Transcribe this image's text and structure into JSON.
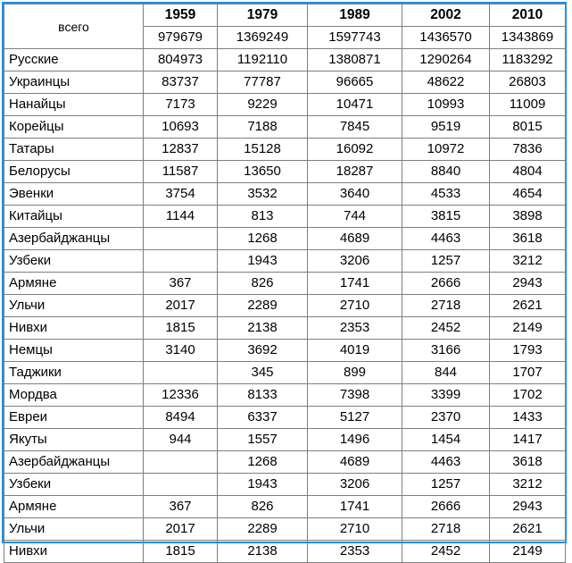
{
  "table": {
    "corner_label": "всего",
    "years": [
      "1959",
      "1979",
      "1989",
      "2002",
      "2010"
    ],
    "totals": [
      "979679",
      "1369249",
      "1597743",
      "1436570",
      "1343869"
    ],
    "rows": [
      {
        "name": "Русские",
        "values": [
          "804973",
          "1192110",
          "1380871",
          "1290264",
          "1183292"
        ]
      },
      {
        "name": "Украинцы",
        "values": [
          "83737",
          "77787",
          "96665",
          "48622",
          "26803"
        ]
      },
      {
        "name": "Нанайцы",
        "values": [
          "7173",
          "9229",
          "10471",
          "10993",
          "11009"
        ]
      },
      {
        "name": "Корейцы",
        "values": [
          "10693",
          "7188",
          "7845",
          "9519",
          "8015"
        ]
      },
      {
        "name": "Татары",
        "values": [
          "12837",
          "15128",
          "16092",
          "10972",
          "7836"
        ]
      },
      {
        "name": "Белорусы",
        "values": [
          "11587",
          "13650",
          "18287",
          "8840",
          "4804"
        ]
      },
      {
        "name": "Эвенки",
        "values": [
          "3754",
          "3532",
          "3640",
          "4533",
          "4654"
        ]
      },
      {
        "name": "Китайцы",
        "values": [
          "1144",
          "813",
          "744",
          "3815",
          "3898"
        ]
      },
      {
        "name": "Азербайджанцы",
        "values": [
          "",
          "1268",
          "4689",
          "4463",
          "3618"
        ]
      },
      {
        "name": "Узбеки",
        "values": [
          "",
          "1943",
          "3206",
          "1257",
          "3212"
        ]
      },
      {
        "name": "Армяне",
        "values": [
          "367",
          "826",
          "1741",
          "2666",
          "2943"
        ]
      },
      {
        "name": "Ульчи",
        "values": [
          "2017",
          "2289",
          "2710",
          "2718",
          "2621"
        ]
      },
      {
        "name": "Нивхи",
        "values": [
          "1815",
          "2138",
          "2353",
          "2452",
          "2149"
        ]
      },
      {
        "name": "Немцы",
        "values": [
          "3140",
          "3692",
          "4019",
          "3166",
          "1793"
        ]
      },
      {
        "name": "Таджики",
        "values": [
          "",
          "345",
          "899",
          "844",
          "1707"
        ]
      },
      {
        "name": "Мордва",
        "values": [
          "12336",
          "8133",
          "7398",
          "3399",
          "1702"
        ]
      },
      {
        "name": "Евреи",
        "values": [
          "8494",
          "6337",
          "5127",
          "2370",
          "1433"
        ]
      },
      {
        "name": "Якуты",
        "values": [
          "944",
          "1557",
          "1496",
          "1454",
          "1417"
        ]
      },
      {
        "name": "Азербайджанцы",
        "values": [
          "",
          "1268",
          "4689",
          "4463",
          "3618"
        ]
      },
      {
        "name": "Узбеки",
        "values": [
          "",
          "1943",
          "3206",
          "1257",
          "3212"
        ]
      },
      {
        "name": "Армяне",
        "values": [
          "367",
          "826",
          "1741",
          "2666",
          "2943"
        ]
      },
      {
        "name": "Ульчи",
        "values": [
          "2017",
          "2289",
          "2710",
          "2718",
          "2621"
        ]
      },
      {
        "name": "Нивхи",
        "values": [
          "1815",
          "2138",
          "2353",
          "2452",
          "2149"
        ]
      }
    ]
  }
}
